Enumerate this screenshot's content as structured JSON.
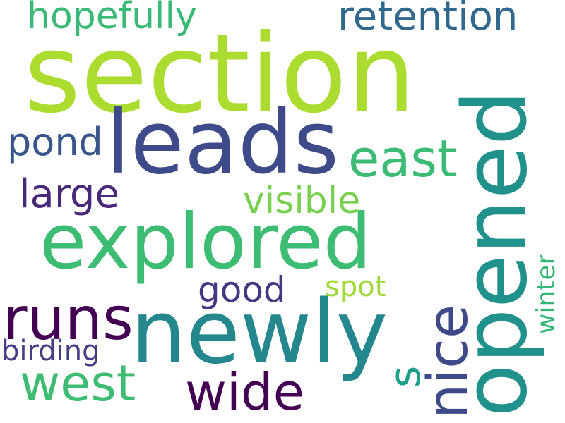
{
  "word_cloud": {
    "background": "#ffffff",
    "words": [
      {
        "key": "section",
        "text": "section",
        "color": "#addc30",
        "orientation": "horizontal"
      },
      {
        "key": "leads",
        "text": "leads",
        "color": "#3f4a8a",
        "orientation": "horizontal"
      },
      {
        "key": "explored",
        "text": "explored",
        "color": "#3dbc74",
        "orientation": "horizontal"
      },
      {
        "key": "newly",
        "text": "newly",
        "color": "#24878e",
        "orientation": "horizontal"
      },
      {
        "key": "opened",
        "text": "opened",
        "color": "#21918c",
        "orientation": "vertical"
      },
      {
        "key": "hopefully",
        "text": "hopefully",
        "color": "#3aba76",
        "orientation": "horizontal"
      },
      {
        "key": "retention",
        "text": "retention",
        "color": "#31688e",
        "orientation": "horizontal"
      },
      {
        "key": "pond",
        "text": "pond",
        "color": "#39568c",
        "orientation": "horizontal"
      },
      {
        "key": "east",
        "text": "east",
        "color": "#3bbb75",
        "orientation": "horizontal"
      },
      {
        "key": "large",
        "text": "large",
        "color": "#482878",
        "orientation": "horizontal"
      },
      {
        "key": "visible",
        "text": "visible",
        "color": "#7ad151",
        "orientation": "horizontal"
      },
      {
        "key": "runs",
        "text": "runs",
        "color": "#440154",
        "orientation": "horizontal"
      },
      {
        "key": "good",
        "text": "good",
        "color": "#453781",
        "orientation": "horizontal"
      },
      {
        "key": "spot",
        "text": "spot",
        "color": "#a0da39",
        "orientation": "horizontal"
      },
      {
        "key": "nice",
        "text": "nice",
        "color": "#3e4989",
        "orientation": "vertical"
      },
      {
        "key": "s",
        "text": "s",
        "color": "#1f9e89",
        "orientation": "vertical"
      },
      {
        "key": "winter",
        "text": "winter",
        "color": "#35b779",
        "orientation": "vertical"
      },
      {
        "key": "birding",
        "text": "birding",
        "color": "#433e85",
        "orientation": "horizontal"
      },
      {
        "key": "west",
        "text": "west",
        "color": "#3fbc73",
        "orientation": "horizontal"
      },
      {
        "key": "wide",
        "text": "wide",
        "color": "#440154",
        "orientation": "horizontal"
      }
    ]
  }
}
